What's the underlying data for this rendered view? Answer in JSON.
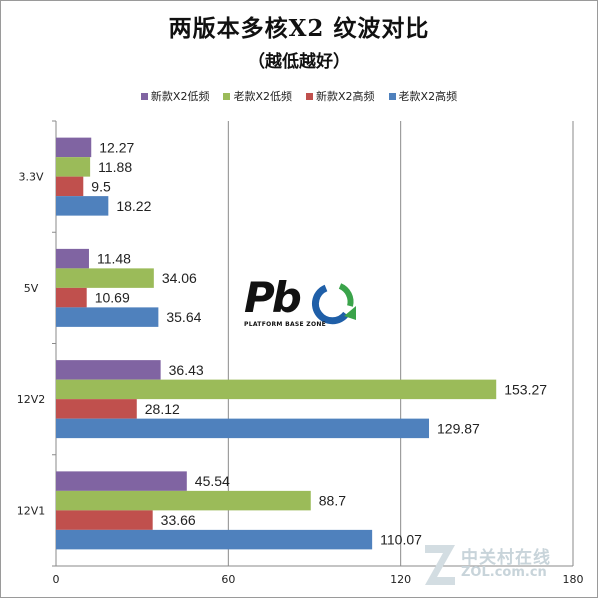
{
  "title": "两版本多核X2  纹波对比",
  "subtitle": "（越低越好）",
  "logo": {
    "text": "Pb",
    "subtext": "PLATFORM BASE ZONE",
    "icon": "pb-swirl-logo"
  },
  "watermark": {
    "line1": "中关村在线",
    "line2": "ZOL.com.cn"
  },
  "colors": {
    "new_low": "#8064a2",
    "old_low": "#9bbb59",
    "new_high": "#c0504d",
    "old_high": "#4f81bd"
  },
  "chart_data": {
    "type": "bar",
    "orientation": "horizontal",
    "title": "两版本多核X2  纹波对比",
    "subtitle": "（越低越好）",
    "categories": [
      "3.3V",
      "5V",
      "12V2",
      "12V1"
    ],
    "series": [
      {
        "name": "新款X2低频",
        "color": "#8064a2",
        "values": [
          12.27,
          11.48,
          36.43,
          45.54
        ]
      },
      {
        "name": "老款X2低频",
        "color": "#9bbb59",
        "values": [
          11.88,
          34.06,
          153.27,
          88.7
        ]
      },
      {
        "name": "新款X2高频",
        "color": "#c0504d",
        "values": [
          9.5,
          10.69,
          28.12,
          33.66
        ]
      },
      {
        "name": "老款X2高频",
        "color": "#4f81bd",
        "values": [
          18.22,
          35.64,
          129.87,
          110.07
        ]
      }
    ],
    "xlim": [
      0,
      180
    ],
    "xticks": [
      0,
      60,
      120,
      180
    ],
    "grid": true,
    "legend_position": "top"
  }
}
